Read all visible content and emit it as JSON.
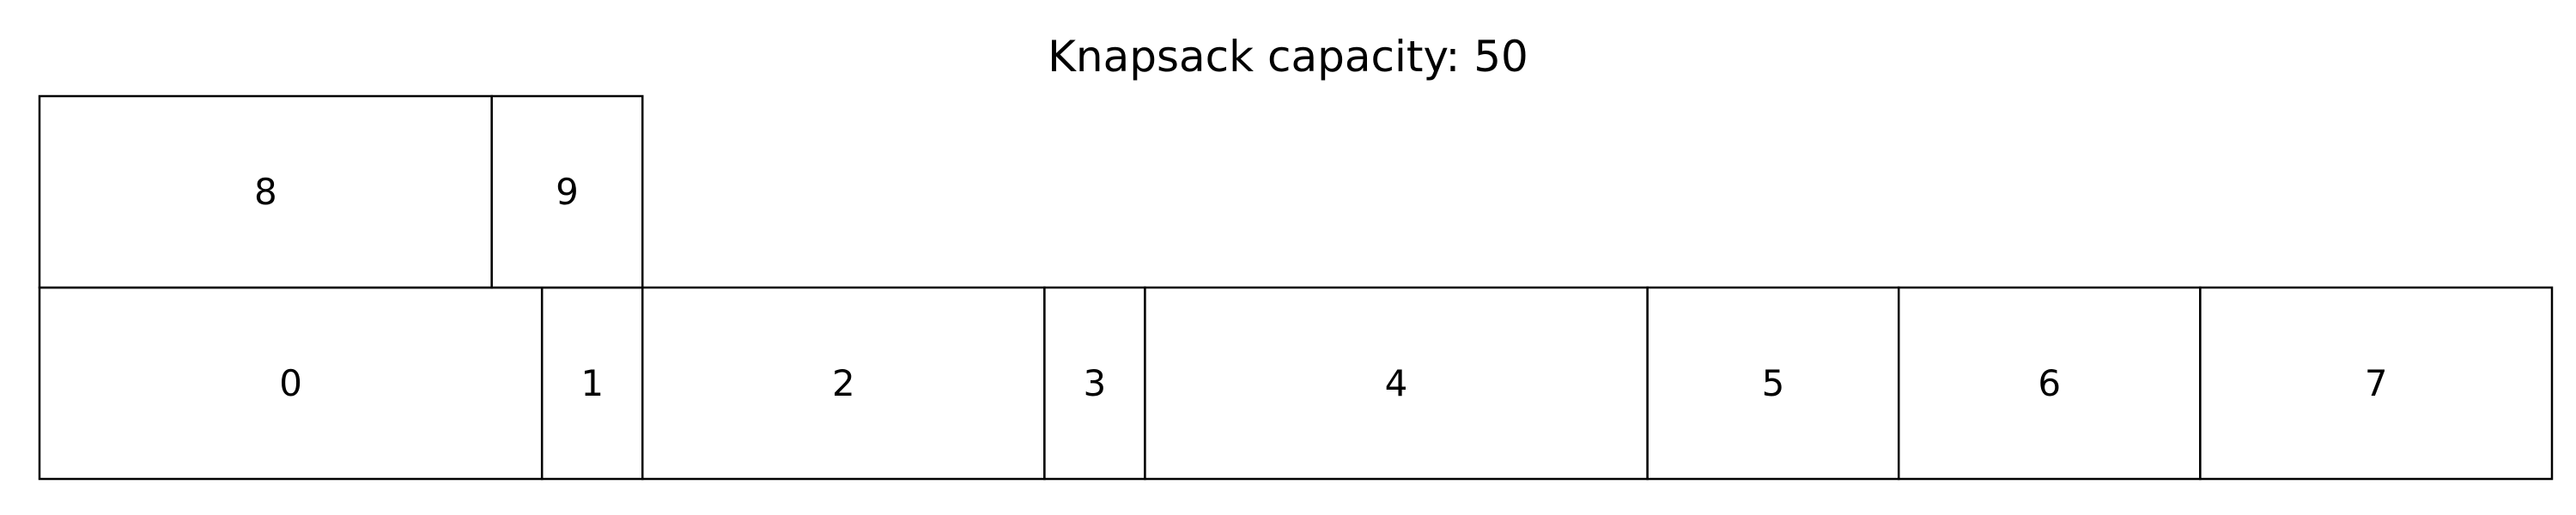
{
  "title": "Knapsack capacity: 50",
  "colors": {
    "stroke": "#000000",
    "fill": "#ffffff",
    "text": "#000000"
  },
  "capacity": 50,
  "rows": [
    {
      "items": [
        {
          "label": "0",
          "size": 10
        },
        {
          "label": "1",
          "size": 2
        },
        {
          "label": "2",
          "size": 8
        },
        {
          "label": "3",
          "size": 2
        },
        {
          "label": "4",
          "size": 10
        },
        {
          "label": "5",
          "size": 5
        },
        {
          "label": "6",
          "size": 6
        },
        {
          "label": "7",
          "size": 7
        }
      ]
    },
    {
      "items": [
        {
          "label": "8",
          "size": 9
        },
        {
          "label": "9",
          "size": 3
        }
      ]
    }
  ]
}
